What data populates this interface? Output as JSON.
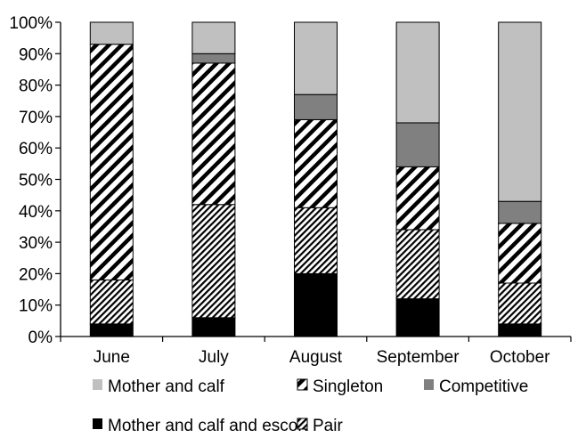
{
  "chart_data": {
    "type": "bar",
    "stacked": true,
    "percent": true,
    "title": "",
    "xlabel": "",
    "ylabel": "",
    "ylim": [
      0,
      100
    ],
    "y_ticks": [
      "0%",
      "10%",
      "20%",
      "30%",
      "40%",
      "50%",
      "60%",
      "70%",
      "80%",
      "90%",
      "100%"
    ],
    "categories": [
      "June",
      "July",
      "August",
      "September",
      "October"
    ],
    "series": [
      {
        "name": "Mother and calf and escort",
        "values": [
          4,
          6,
          20,
          12,
          4
        ],
        "color": "#000000",
        "pattern": "solid"
      },
      {
        "name": "Pair",
        "values": [
          14,
          36,
          21,
          22,
          13
        ],
        "color": "#000000",
        "pattern": "dense-hatch"
      },
      {
        "name": "Singleton",
        "values": [
          75,
          45,
          28,
          20,
          19
        ],
        "color": "#000000",
        "pattern": "wide-hatch"
      },
      {
        "name": "Competitive",
        "values": [
          0,
          3,
          8,
          14,
          7
        ],
        "color": "#808080",
        "pattern": "solid"
      },
      {
        "name": "Mother and calf",
        "values": [
          7,
          10,
          23,
          32,
          57
        ],
        "color": "#c0c0c0",
        "pattern": "solid"
      }
    ],
    "legend": {
      "placement": "bottom",
      "rows": [
        [
          "Mother and calf",
          "Singleton",
          "Competitive"
        ],
        [
          "Mother and calf and escort",
          "Pair"
        ]
      ]
    },
    "grid": false
  }
}
